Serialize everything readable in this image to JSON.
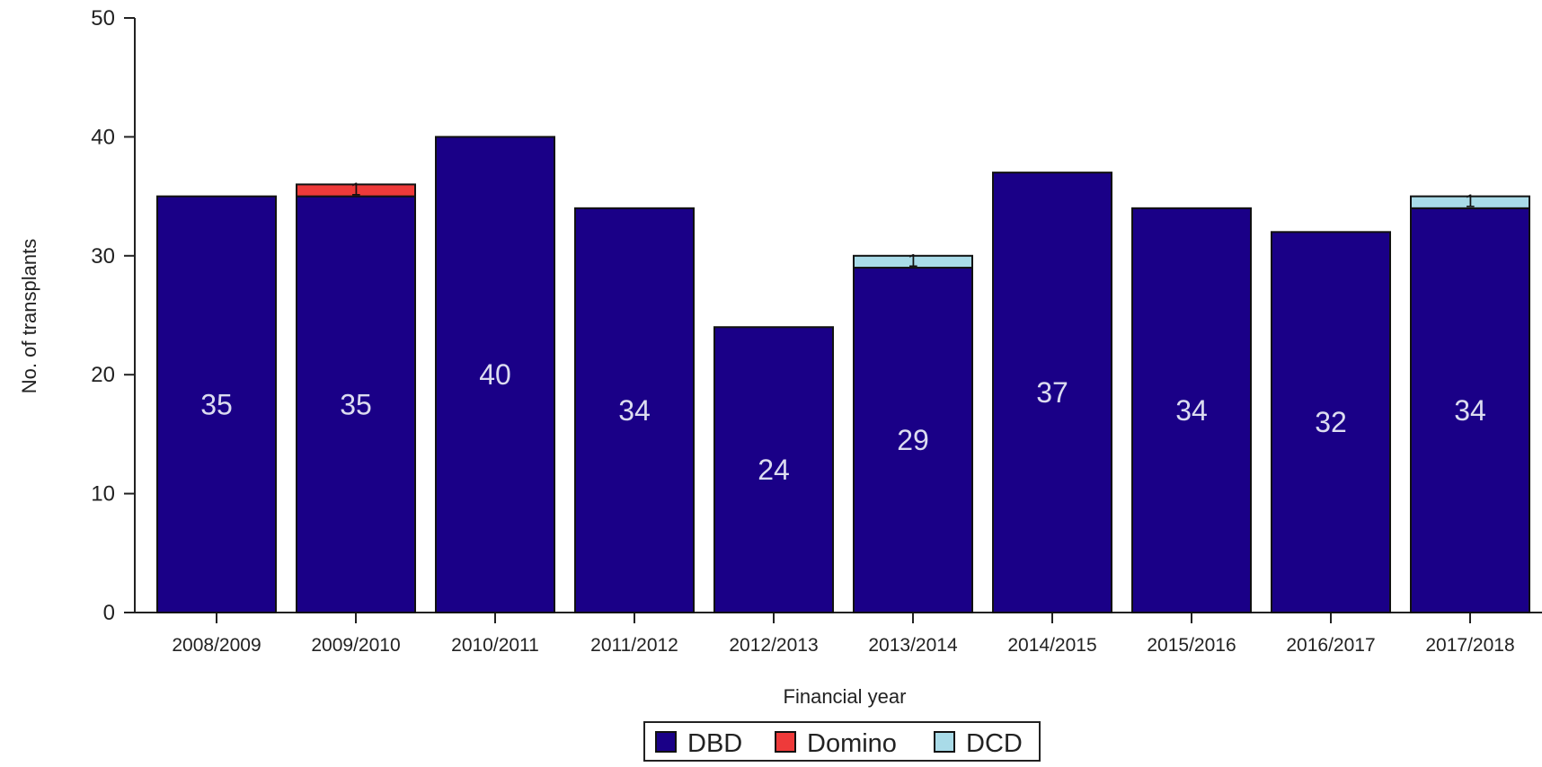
{
  "chart_data": {
    "type": "bar",
    "stacked": true,
    "xlabel": "Financial year",
    "ylabel": "No. of transplants",
    "ylim": [
      0,
      50
    ],
    "yticks": [
      0,
      10,
      20,
      30,
      40,
      50
    ],
    "categories": [
      "2008/2009",
      "2009/2010",
      "2010/2011",
      "2011/2012",
      "2012/2013",
      "2013/2014",
      "2014/2015",
      "2015/2016",
      "2016/2017",
      "2017/2018"
    ],
    "series": [
      {
        "name": "DBD",
        "color": "#1a0087",
        "values": [
          35,
          35,
          40,
          34,
          24,
          29,
          37,
          34,
          32,
          34
        ],
        "value_labels": [
          "35",
          "35",
          "40",
          "34",
          "24",
          "29",
          "37",
          "34",
          "32",
          "34"
        ]
      },
      {
        "name": "Domino",
        "color": "#ee3a3a",
        "values": [
          0,
          1,
          0,
          0,
          0,
          0,
          0,
          0,
          0,
          0
        ],
        "value_labels": [
          "",
          "1",
          "",
          "",
          "",
          "",
          "",
          "",
          "",
          ""
        ]
      },
      {
        "name": "DCD",
        "color": "#a9dbe8",
        "values": [
          0,
          0,
          0,
          0,
          0,
          1,
          0,
          0,
          0,
          1
        ],
        "value_labels": [
          "",
          "",
          "",
          "",
          "",
          "1",
          "",
          "",
          "",
          "1"
        ]
      }
    ],
    "grid": false,
    "legend_position": "bottom-center"
  }
}
